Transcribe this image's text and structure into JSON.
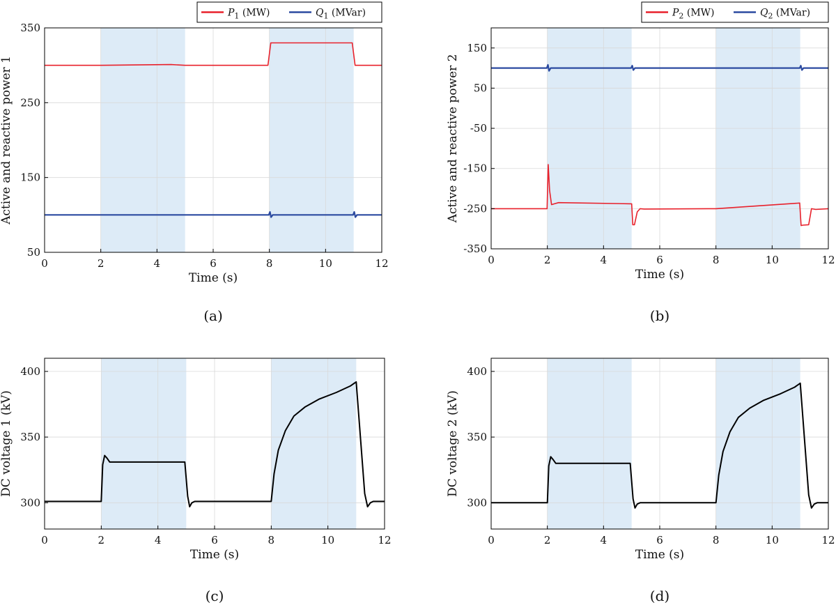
{
  "colors": {
    "p_series": "#e8212b",
    "q_series": "#2b4aa0",
    "dc_series": "#000000",
    "shade": "#ddebf7",
    "grid": "#d9d9d9",
    "axis": "#000000"
  },
  "chart_data": [
    {
      "id": "a",
      "type": "line",
      "caption": "(a)",
      "xlabel": "Time (s)",
      "ylabel": "Active and reactive power 1",
      "xlim": [
        0,
        12
      ],
      "ylim": [
        50,
        350
      ],
      "xticks": [
        0,
        2,
        4,
        6,
        8,
        10,
        12
      ],
      "yticks": [
        50,
        150,
        250,
        350
      ],
      "grid": true,
      "shaded_regions": [
        [
          2,
          5
        ],
        [
          8,
          11
        ]
      ],
      "legend": {
        "placement": "top-right-outside",
        "entries": [
          {
            "symbol": "P",
            "sub": "1",
            "unit": " (MW)",
            "color": "#e8212b"
          },
          {
            "symbol": "Q",
            "sub": "1",
            "unit": " (MVar)",
            "color": "#2b4aa0"
          }
        ]
      },
      "series": [
        {
          "name": "P1 (MW)",
          "color": "#e8212b",
          "width": 1.6,
          "x": [
            0,
            2,
            4.5,
            5,
            7.95,
            8.05,
            10.95,
            11.05,
            12
          ],
          "y": [
            300,
            300,
            301,
            300,
            300,
            330,
            330,
            300,
            300
          ]
        },
        {
          "name": "Q1 (MVar)",
          "color": "#2b4aa0",
          "width": 2.2,
          "x": [
            0,
            7.98,
            8.02,
            8.06,
            8.12,
            10.98,
            11.02,
            11.06,
            11.12,
            12
          ],
          "y": [
            100,
            100,
            104,
            97,
            100,
            100,
            104,
            97,
            100,
            100
          ]
        }
      ]
    },
    {
      "id": "b",
      "type": "line",
      "caption": "(b)",
      "xlabel": "Time (s)",
      "ylabel": "Active and reactive power 2",
      "xlim": [
        0,
        12
      ],
      "ylim": [
        -350,
        200
      ],
      "xticks": [
        0,
        2,
        4,
        6,
        8,
        10,
        12
      ],
      "yticks": [
        -350,
        -250,
        -150,
        -50,
        50,
        150
      ],
      "grid": true,
      "shaded_regions": [
        [
          2,
          5
        ],
        [
          8,
          11
        ]
      ],
      "legend": {
        "placement": "top-right-outside",
        "entries": [
          {
            "symbol": "P",
            "sub": "2",
            "unit": " (MW)",
            "color": "#e8212b"
          },
          {
            "symbol": "Q",
            "sub": "2",
            "unit": " (MVar)",
            "color": "#2b4aa0"
          }
        ]
      },
      "series": [
        {
          "name": "P2 (MW)",
          "color": "#e8212b",
          "width": 1.6,
          "x": [
            0,
            1.99,
            2.03,
            2.08,
            2.15,
            2.25,
            2.4,
            5,
            5.04,
            5.1,
            5.2,
            5.3,
            5.45,
            8,
            10.98,
            11.03,
            11.1,
            11.3,
            11.4,
            11.55,
            12
          ],
          "y": [
            -250,
            -250,
            -140,
            -205,
            -240,
            -238,
            -235,
            -238,
            -290,
            -290,
            -258,
            -250,
            -251,
            -250,
            -236,
            -292,
            -291,
            -290,
            -250,
            -252,
            -250
          ]
        },
        {
          "name": "Q2 (MVar)",
          "color": "#2b4aa0",
          "width": 2.2,
          "x": [
            0,
            1.98,
            2.02,
            2.06,
            2.12,
            4.98,
            5.02,
            5.06,
            5.12,
            10.98,
            11.02,
            11.06,
            11.12,
            12
          ],
          "y": [
            100,
            100,
            108,
            93,
            100,
            100,
            106,
            95,
            100,
            100,
            106,
            95,
            100,
            100
          ]
        }
      ]
    },
    {
      "id": "c",
      "type": "line",
      "caption": "(c)",
      "xlabel": "Time (s)",
      "ylabel": "DC voltage 1 (kV)",
      "xlim": [
        0,
        12
      ],
      "ylim": [
        280,
        410
      ],
      "xticks": [
        0,
        2,
        4,
        6,
        8,
        10,
        12
      ],
      "yticks": [
        300,
        350,
        400
      ],
      "grid": true,
      "shaded_regions": [
        [
          2,
          5
        ],
        [
          8,
          11
        ]
      ],
      "series": [
        {
          "name": "DC voltage 1",
          "color": "#000000",
          "width": 2,
          "x": [
            0,
            2,
            2.05,
            2.12,
            2.2,
            2.3,
            2.5,
            4.95,
            5.05,
            5.12,
            5.2,
            5.3,
            8,
            8.1,
            8.25,
            8.5,
            8.8,
            9.2,
            9.7,
            10.3,
            10.8,
            11.0,
            11.3,
            11.4,
            11.5,
            11.6,
            12
          ],
          "y": [
            301,
            301,
            329,
            336,
            334,
            331,
            331,
            331,
            305,
            297,
            300,
            301,
            301,
            322,
            340,
            355,
            366,
            373,
            379,
            384,
            389,
            392,
            307,
            297,
            300,
            301,
            301
          ]
        }
      ]
    },
    {
      "id": "d",
      "type": "line",
      "caption": "(d)",
      "xlabel": "Time (s)",
      "ylabel": "DC voltage 2 (kV)",
      "xlim": [
        0,
        12
      ],
      "ylim": [
        280,
        410
      ],
      "xticks": [
        0,
        2,
        4,
        6,
        8,
        10,
        12
      ],
      "yticks": [
        300,
        350,
        400
      ],
      "grid": true,
      "shaded_regions": [
        [
          2,
          5
        ],
        [
          8,
          11
        ]
      ],
      "series": [
        {
          "name": "DC voltage 2",
          "color": "#000000",
          "width": 2,
          "x": [
            0,
            2,
            2.05,
            2.12,
            2.2,
            2.3,
            2.5,
            4.95,
            5.05,
            5.12,
            5.2,
            5.3,
            8,
            8.1,
            8.25,
            8.5,
            8.8,
            9.2,
            9.7,
            10.3,
            10.8,
            11.0,
            11.3,
            11.4,
            11.5,
            11.6,
            12
          ],
          "y": [
            300,
            300,
            328,
            335,
            333,
            330,
            330,
            330,
            303,
            296,
            299,
            300,
            300,
            321,
            339,
            354,
            365,
            372,
            378,
            383,
            388,
            391,
            306,
            296,
            299,
            300,
            300
          ]
        }
      ]
    }
  ]
}
